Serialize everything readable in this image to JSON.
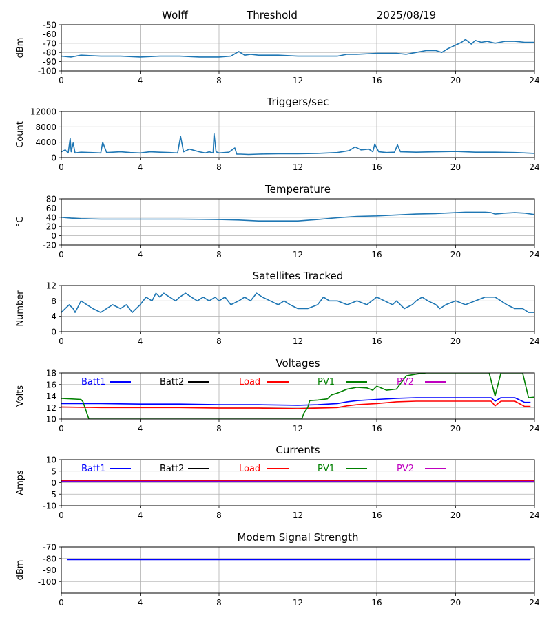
{
  "header": {
    "station": "Wolff",
    "mode": "Threshold",
    "date": "2025/08/19"
  },
  "chart_data": [
    {
      "type": "line",
      "title": "",
      "ylabel": "dBm",
      "xlim": [
        0,
        24
      ],
      "ylim": [
        -100,
        -50
      ],
      "xticks": [
        "0",
        "4",
        "8",
        "12",
        "16",
        "20",
        "24"
      ],
      "yticks": [
        "-100",
        "-90",
        "-80",
        "-70",
        "-60",
        "-50"
      ],
      "grid": true,
      "series": [
        {
          "color": "#1f77b4",
          "x": [
            0,
            0.5,
            1,
            2,
            3,
            4,
            5,
            6,
            7,
            8,
            8.6,
            9,
            9.3,
            9.6,
            10,
            11,
            12,
            13,
            14,
            14.5,
            15,
            16,
            17,
            17.5,
            18,
            18.5,
            19,
            19.3,
            19.6,
            20,
            20.3,
            20.5,
            20.8,
            21,
            21.3,
            21.6,
            22,
            22.5,
            23,
            23.5,
            24
          ],
          "y": [
            -84,
            -85,
            -83,
            -84,
            -84,
            -85,
            -84,
            -84,
            -85,
            -85,
            -84,
            -79,
            -83,
            -82,
            -83,
            -83,
            -84,
            -84,
            -84,
            -82,
            -82,
            -81,
            -81,
            -82,
            -80,
            -78,
            -78,
            -80,
            -76,
            -72,
            -69,
            -66,
            -71,
            -67,
            -69,
            -68,
            -70,
            -68,
            -68,
            -69,
            -69
          ]
        }
      ]
    },
    {
      "type": "line",
      "title": "Triggers/sec",
      "ylabel": "Count",
      "xlim": [
        0,
        24
      ],
      "ylim": [
        0,
        12000
      ],
      "xticks": [
        "0",
        "4",
        "8",
        "12",
        "16",
        "20",
        "24"
      ],
      "yticks": [
        "0",
        "4000",
        "8000",
        "12000"
      ],
      "grid": true,
      "series": [
        {
          "color": "#1f77b4",
          "x": [
            0,
            0.2,
            0.35,
            0.45,
            0.5,
            0.6,
            0.7,
            1,
            1.5,
            2,
            2.1,
            2.3,
            3,
            3.5,
            4,
            4.5,
            5,
            5.5,
            5.9,
            6.05,
            6.2,
            6.5,
            7,
            7.3,
            7.5,
            7.7,
            7.75,
            7.85,
            8,
            8.5,
            8.8,
            8.9,
            9.1,
            9.5,
            10,
            11,
            12,
            13,
            14,
            14.6,
            14.9,
            15.2,
            15.6,
            15.8,
            15.9,
            16.1,
            16.5,
            16.9,
            17.05,
            17.2,
            18,
            19,
            20,
            21,
            22,
            23,
            24
          ],
          "y": [
            1500,
            2000,
            1200,
            5000,
            1500,
            3800,
            1200,
            1400,
            1300,
            1200,
            4000,
            1300,
            1500,
            1300,
            1200,
            1500,
            1400,
            1300,
            1200,
            5500,
            1500,
            2200,
            1500,
            1200,
            1500,
            1200,
            6200,
            1500,
            1200,
            1400,
            2500,
            900,
            900,
            800,
            900,
            1000,
            1000,
            1100,
            1300,
            1800,
            2800,
            2000,
            2200,
            1500,
            3500,
            1500,
            1300,
            1400,
            3300,
            1500,
            1400,
            1500,
            1600,
            1400,
            1400,
            1300,
            1100
          ]
        }
      ]
    },
    {
      "type": "line",
      "title": "Temperature",
      "ylabel": "°C",
      "xlim": [
        0,
        24
      ],
      "ylim": [
        -20,
        80
      ],
      "xticks": [
        "0",
        "4",
        "8",
        "12",
        "16",
        "20",
        "24"
      ],
      "yticks": [
        "-20",
        "0",
        "20",
        "40",
        "60",
        "80"
      ],
      "grid": true,
      "series": [
        {
          "color": "#1f77b4",
          "x": [
            0,
            0.5,
            1,
            2,
            4,
            6,
            8,
            9,
            10,
            11,
            12,
            13,
            14,
            15,
            16,
            17,
            18,
            19,
            20,
            20.5,
            21,
            21.5,
            21.8,
            22,
            22.5,
            23,
            23.5,
            24
          ],
          "y": [
            40,
            38,
            37,
            36,
            36,
            36,
            35,
            34,
            32,
            32,
            32,
            35,
            39,
            42,
            43,
            45,
            47,
            48,
            50,
            51,
            51,
            51,
            50,
            47,
            49,
            50,
            49,
            46
          ]
        }
      ]
    },
    {
      "type": "line",
      "title": "Satellites Tracked",
      "ylabel": "Number",
      "xlim": [
        0,
        24
      ],
      "ylim": [
        0,
        12
      ],
      "xticks": [
        "0",
        "4",
        "8",
        "12",
        "16",
        "20",
        "24"
      ],
      "yticks": [
        "0",
        "4",
        "8",
        "12"
      ],
      "grid": true,
      "series": [
        {
          "color": "#1f77b4",
          "x": [
            0,
            0.2,
            0.4,
            0.6,
            0.7,
            0.9,
            1,
            1.3,
            1.6,
            2,
            2.3,
            2.6,
            3,
            3.3,
            3.6,
            3.8,
            4,
            4.3,
            4.6,
            4.8,
            5,
            5.2,
            5.5,
            5.8,
            6,
            6.3,
            6.6,
            6.9,
            7.2,
            7.5,
            7.8,
            8,
            8.3,
            8.6,
            9,
            9.3,
            9.6,
            9.9,
            10.2,
            10.6,
            11,
            11.3,
            11.6,
            12,
            12.5,
            13,
            13.3,
            13.6,
            14,
            14.5,
            15,
            15.5,
            16,
            16.4,
            16.8,
            17,
            17.4,
            17.8,
            18,
            18.3,
            18.6,
            19,
            19.2,
            19.5,
            20,
            20.5,
            21,
            21.5,
            22,
            22.3,
            22.6,
            23,
            23.4,
            23.7,
            24
          ],
          "y": [
            5,
            6,
            7,
            6,
            5,
            7,
            8,
            7,
            6,
            5,
            6,
            7,
            6,
            7,
            5,
            6,
            7,
            9,
            8,
            10,
            9,
            10,
            9,
            8,
            9,
            10,
            9,
            8,
            9,
            8,
            9,
            8,
            9,
            7,
            8,
            9,
            8,
            10,
            9,
            8,
            7,
            8,
            7,
            6,
            6,
            7,
            9,
            8,
            8,
            7,
            8,
            7,
            9,
            8,
            7,
            8,
            6,
            7,
            8,
            9,
            8,
            7,
            6,
            7,
            8,
            7,
            8,
            9,
            9,
            8,
            7,
            6,
            6,
            5,
            5
          ]
        }
      ]
    },
    {
      "type": "line",
      "title": "Voltages",
      "ylabel": "Volts",
      "xlim": [
        0,
        24
      ],
      "ylim": [
        10,
        18
      ],
      "xticks": [
        "0",
        "4",
        "8",
        "12",
        "16",
        "20",
        "24"
      ],
      "yticks": [
        "10",
        "12",
        "14",
        "16",
        "18"
      ],
      "grid": true,
      "legend": "top",
      "series": [
        {
          "name": "Batt1",
          "color": "#0000ff",
          "x": [
            0,
            2,
            4,
            6,
            8,
            10,
            12,
            13,
            14,
            14.5,
            15,
            16,
            17,
            18,
            20,
            21.8,
            22,
            22.3,
            23,
            23.5,
            23.8
          ],
          "y": [
            12.7,
            12.7,
            12.6,
            12.6,
            12.5,
            12.5,
            12.4,
            12.5,
            12.7,
            13.0,
            13.2,
            13.4,
            13.6,
            13.7,
            13.7,
            13.7,
            13.1,
            13.7,
            13.7,
            12.9,
            12.9
          ]
        },
        {
          "name": "Batt2",
          "color": "#000000",
          "x": [],
          "y": []
        },
        {
          "name": "Load",
          "color": "#ff0000",
          "x": [
            0,
            2,
            4,
            6,
            8,
            10,
            12,
            13,
            14,
            14.5,
            15,
            16,
            17,
            18,
            20,
            21.8,
            22,
            22.3,
            23,
            23.5,
            23.8
          ],
          "y": [
            12.1,
            12.0,
            12.0,
            12.0,
            11.9,
            11.9,
            11.8,
            11.9,
            12.0,
            12.3,
            12.5,
            12.7,
            13.0,
            13.1,
            13.1,
            13.1,
            12.3,
            13.1,
            13.1,
            12.2,
            12.2
          ]
        },
        {
          "name": "PV1",
          "color": "#008000",
          "x": [
            0,
            1,
            1.1,
            1.2,
            1.3,
            1.4,
            12.2,
            12.3,
            12.5,
            12.6,
            13,
            13.5,
            13.7,
            14,
            14.5,
            15,
            15.5,
            15.8,
            16,
            16.5,
            17,
            17.5,
            18,
            18.5,
            21.7,
            22,
            22.3,
            23.4,
            23.7,
            24
          ],
          "y": [
            13.6,
            13.4,
            13.0,
            12.0,
            11.0,
            10.0,
            10.0,
            11.0,
            12.0,
            13.2,
            13.3,
            13.5,
            14.2,
            14.5,
            15.2,
            15.5,
            15.4,
            15.0,
            15.7,
            15.0,
            15.2,
            17.5,
            17.8,
            18.0,
            18.0,
            14.0,
            18.0,
            18.0,
            13.7,
            13.8
          ]
        },
        {
          "name": "PV2",
          "color": "#bf00bf",
          "x": [],
          "y": []
        }
      ]
    },
    {
      "type": "line",
      "title": "Currents",
      "ylabel": "Amps",
      "xlim": [
        0,
        24
      ],
      "ylim": [
        -10,
        10
      ],
      "xticks": [
        "0",
        "4",
        "8",
        "12",
        "16",
        "20",
        "24"
      ],
      "yticks": [
        "-10",
        "-5",
        "0",
        "5",
        "10"
      ],
      "grid": true,
      "legend": "top",
      "series": [
        {
          "name": "Batt1",
          "color": "#0000ff",
          "x": [
            0,
            24
          ],
          "y": [
            0.8,
            0.8
          ]
        },
        {
          "name": "Batt2",
          "color": "#000000",
          "x": [],
          "y": []
        },
        {
          "name": "Load",
          "color": "#ff0000",
          "x": [
            0,
            24
          ],
          "y": [
            1.0,
            1.0
          ]
        },
        {
          "name": "PV1",
          "color": "#008000",
          "x": [],
          "y": []
        },
        {
          "name": "PV2",
          "color": "#bf00bf",
          "x": [
            0,
            24
          ],
          "y": [
            0.4,
            0.4
          ]
        }
      ]
    },
    {
      "type": "line",
      "title": "Modem Signal Strength",
      "ylabel": "dBm",
      "xlim": [
        0,
        24
      ],
      "ylim": [
        -110,
        -70
      ],
      "xticks": [
        "0",
        "4",
        "8",
        "12",
        "16",
        "20",
        "24"
      ],
      "yticks": [
        "-100",
        "-90",
        "-80",
        "-70"
      ],
      "grid": true,
      "series": [
        {
          "color": "#0000ff",
          "x": [
            0.3,
            23.8
          ],
          "y": [
            -81,
            -81
          ]
        }
      ]
    }
  ]
}
